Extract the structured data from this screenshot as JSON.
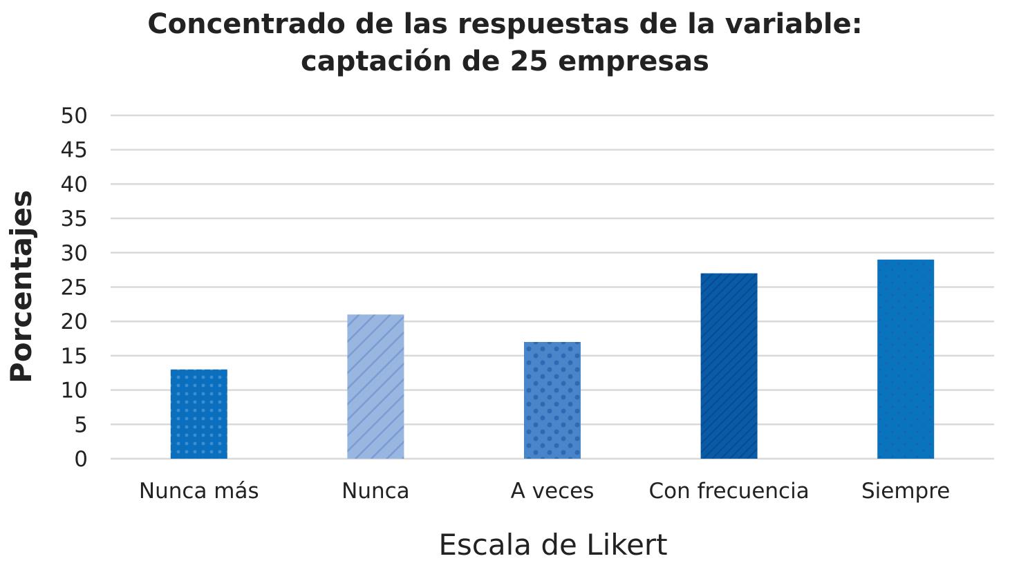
{
  "chart_data": {
    "type": "bar",
    "title_lines": [
      "Concentrado de las respuestas de la variable:",
      "captación de 25 empresas"
    ],
    "xlabel": "Escala de Likert",
    "ylabel": "Porcentajes",
    "categories": [
      "Nunca más",
      "Nunca",
      "A veces",
      "Con frecuencia",
      "Siempre"
    ],
    "values": [
      13,
      21,
      17,
      27,
      29
    ],
    "ylim": [
      0,
      50
    ],
    "yticks": [
      0,
      5,
      10,
      15,
      20,
      25,
      30,
      35,
      40,
      45,
      50
    ],
    "grid": true,
    "legend": "none",
    "bar_colors": [
      "#0b6fbd",
      "#99b6e0",
      "#4a85c9",
      "#0a5ba7",
      "#0a73bd"
    ],
    "bar_patterns": [
      "dots-small",
      "diagonal-lines",
      "dots-large",
      "diagonal-dense",
      "dots-sparse"
    ]
  }
}
